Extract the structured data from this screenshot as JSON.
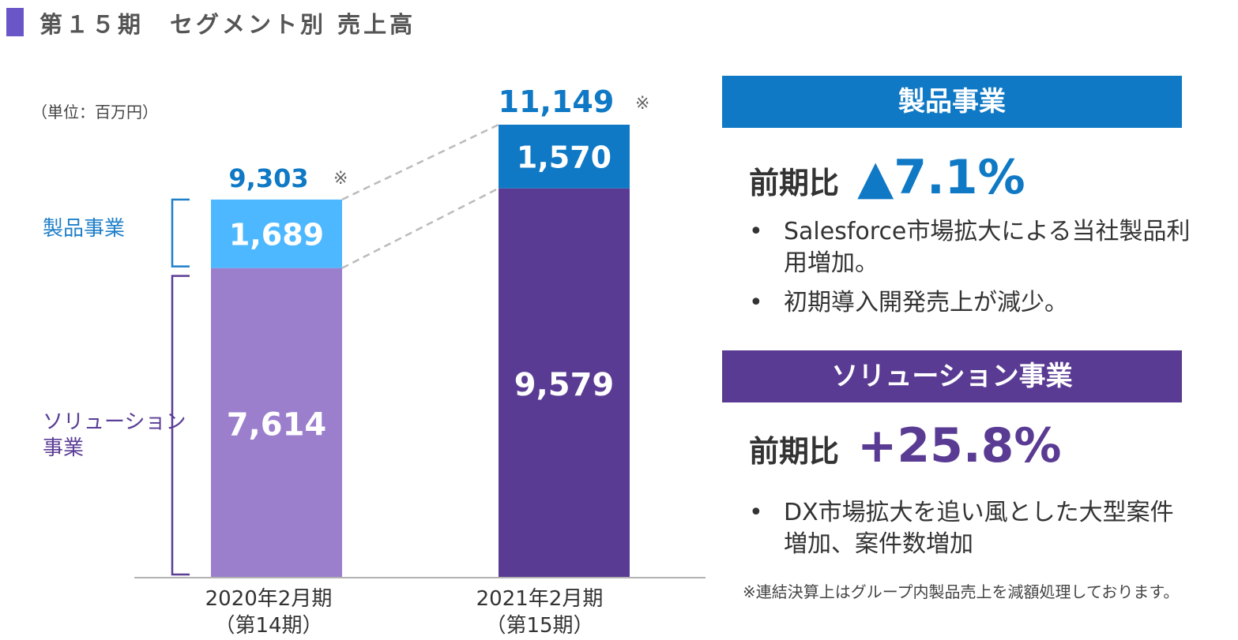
{
  "page": {
    "title": "第１５期　セグメント別 売上高",
    "unit": "（単位：百万円）",
    "footnote": "※連結決算上はグループ内製品売上を減額処理しております。"
  },
  "colors": {
    "title_bar": "#6b56c8",
    "product_2020": "#4db8ff",
    "solution_2020": "#9b7fcc",
    "product_2021": "#0f79c5",
    "solution_2021": "#5a3b93",
    "total_text": "#0f79c5",
    "connector": "#bbbbbb"
  },
  "chart_data": {
    "type": "bar",
    "stacked": true,
    "categories": [
      "2020年2月期\n（第14期）",
      "2021年2月期\n（第15期）"
    ],
    "series": [
      {
        "name": "ソリューション事業",
        "values": [
          7614,
          9579
        ]
      },
      {
        "name": "製品事業",
        "values": [
          1689,
          1570
        ]
      }
    ],
    "value_labels": {
      "solution": [
        "7,614",
        "9,579"
      ],
      "product": [
        "1,689",
        "1,570"
      ]
    },
    "totals": [
      9303,
      11149
    ],
    "total_labels": [
      "9,303",
      "11,149"
    ],
    "total_mark": "※",
    "ylim": [
      0,
      11149
    ],
    "title": "",
    "xlabel": "",
    "ylabel": ""
  },
  "segment_labels": {
    "product": "製品事業",
    "solution_line1": "ソリューション",
    "solution_line2": "事業"
  },
  "x_labels": [
    {
      "line1": "2020年2月期",
      "line2": "（第14期）"
    },
    {
      "line1": "2021年2月期",
      "line2": "（第15期）"
    }
  ],
  "panels": {
    "product": {
      "header": "製品事業",
      "growth_label": "前期比",
      "growth_value": "▲7.1%",
      "bullets": [
        "Salesforce市場拡大による当社製品利用増加。",
        "初期導入開発売上が減少。"
      ]
    },
    "solution": {
      "header": "ソリューション事業",
      "growth_label": "前期比",
      "growth_value": "+25.8%",
      "bullets": [
        "DX市場拡大を追い風とした大型案件増加、案件数増加"
      ]
    },
    "bullet_mark": "•"
  }
}
